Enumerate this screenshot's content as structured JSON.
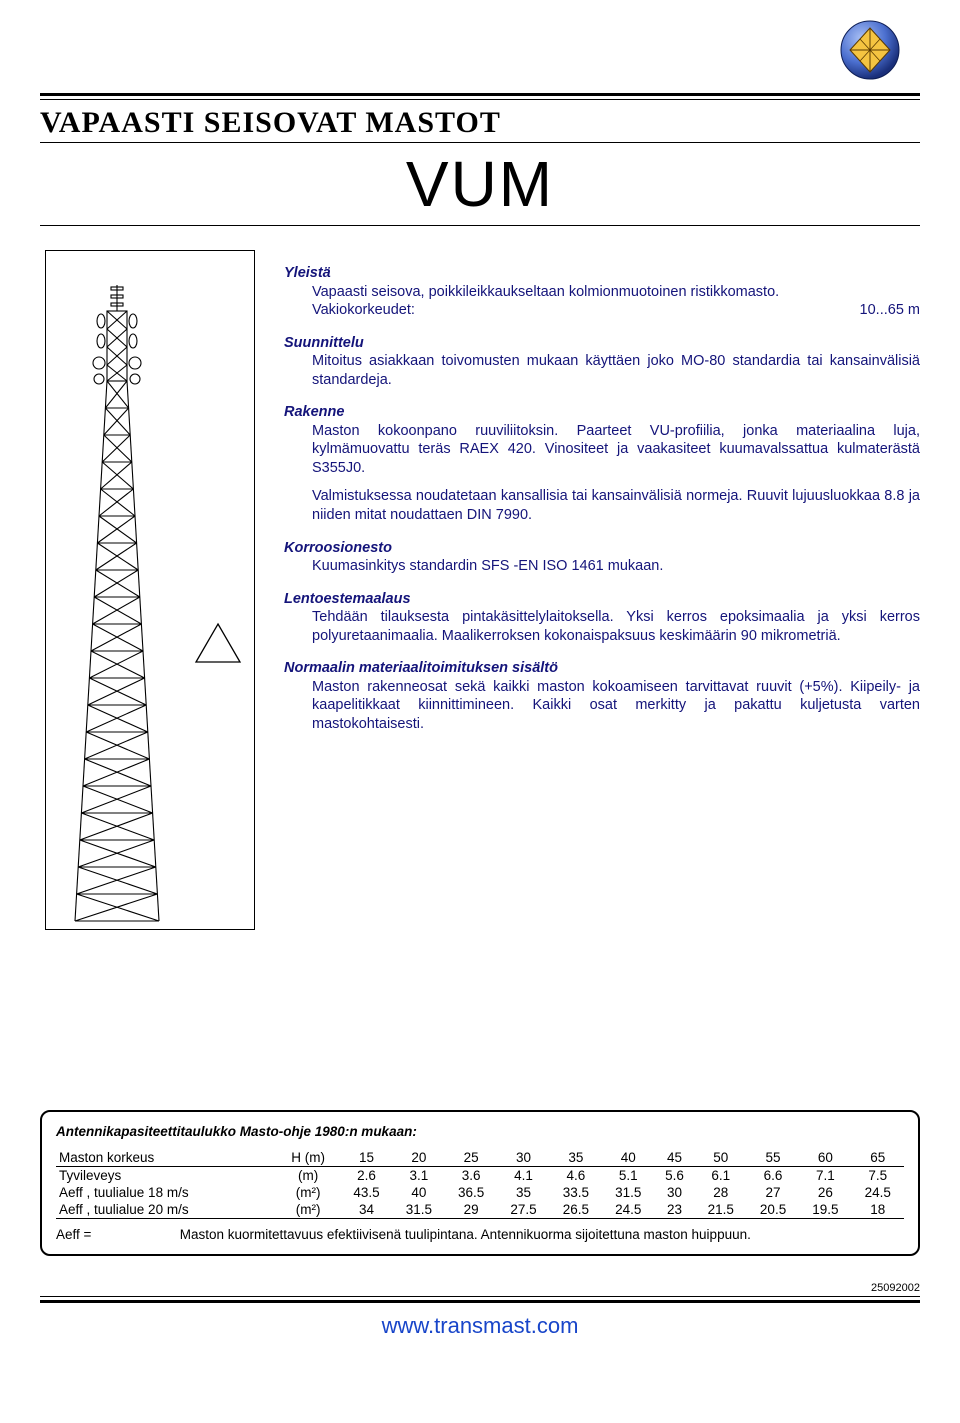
{
  "logo": {
    "outer_fill": "#4b6fcf",
    "inner_fill": "#f4c441",
    "highlight": "#ffffff"
  },
  "header": {
    "main_title": "VAPAASTI SEISOVAT MASTOT",
    "sub_title": "VUM"
  },
  "text_color": "#14147a",
  "sections": {
    "yleista": {
      "head": "Yleistä",
      "body": "Vapaasti seisova, poikkileikkaukseltaan kolmionmuotoinen ristikkomasto.",
      "vak_label": "Vakiokorkeudet:",
      "vak_value": "10...65 m"
    },
    "suunnittelu": {
      "head": "Suunnittelu",
      "body": "Mitoitus asiakkaan toivomusten mukaan käyttäen joko MO-80 standardia tai kansainvälisiä standardeja."
    },
    "rakenne": {
      "head": "Rakenne",
      "body": "Maston kokoonpano ruuviliitoksin. Paarteet VU-profiilia, jonka materiaalina luja, kylmämuovattu teräs RAEX 420. Vinositeet ja vaakasiteet kuumavalssattua kulmaterästä S355J0.",
      "note": "Valmistuksessa noudatetaan kansallisia tai kansainvälisiä normeja. Ruuvit lujuusluokkaa 8.8 ja niiden mitat noudattaen DIN 7990."
    },
    "korroosio": {
      "head": "Korroosionesto",
      "body": "Kuumasinkitys standardin SFS -EN ISO 1461 mukaan."
    },
    "lento": {
      "head": "Lentoestemaalaus",
      "body": "Tehdään tilauksesta pintakäsittelylaitoksella. Yksi kerros epoksimaalia ja yksi kerros polyuretaanimaalia. Maalikerroksen kokonaispaksuus keskimäärin 90 mikrometriä."
    },
    "normaali": {
      "head": "Normaalin materiaalitoimituksen sisältö",
      "body": "Maston rakenneosat sekä kaikki maston kokoamiseen tarvittavat ruuvit (+5%). Kiipeily- ja kaapelitikkaat kiinnittimineen. Kaikki osat merkitty ja pakattu kuljetusta varten mastokohtaisesti."
    }
  },
  "capacity_table": {
    "title": "Antennikapasiteettitaulukko Masto-ohje 1980:n mukaan:",
    "columns_label": "H (m)",
    "row_labels": [
      "Maston korkeus",
      "Tyvileveys",
      "Aeff , tuulialue 18 m/s",
      "Aeff , tuulialue 20 m/s"
    ],
    "row_units": [
      "",
      "(m)",
      "(m²)",
      "(m²)"
    ],
    "columns": [
      "15",
      "20",
      "25",
      "30",
      "35",
      "40",
      "45",
      "50",
      "55",
      "60",
      "65"
    ],
    "rows": [
      [
        "2.6",
        "3.1",
        "3.6",
        "4.1",
        "4.6",
        "5.1",
        "5.6",
        "6.1",
        "6.6",
        "7.1",
        "7.5"
      ],
      [
        "43.5",
        "40",
        "36.5",
        "35",
        "33.5",
        "31.5",
        "30",
        "28",
        "27",
        "26",
        "24.5"
      ],
      [
        "34",
        "31.5",
        "29",
        "27.5",
        "26.5",
        "24.5",
        "23",
        "21.5",
        "20.5",
        "19.5",
        "18"
      ]
    ],
    "aeff_label": "Aeff  =",
    "aeff_note": "Maston kuormitettavuus efektiivisenä tuulipintana. Antennikuorma sijoitettuna maston huippuun."
  },
  "footer": {
    "date": "25092002",
    "url": "www.transmast.com"
  },
  "mast_svg": {
    "stroke": "#000000",
    "stroke_width": 1.1
  }
}
